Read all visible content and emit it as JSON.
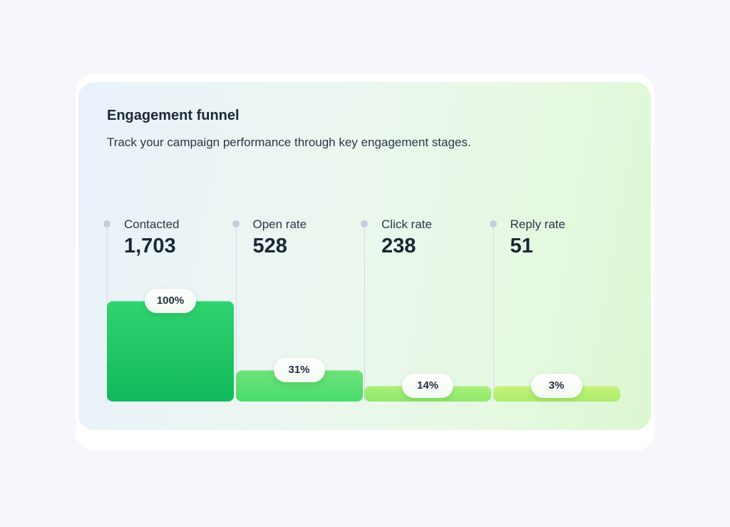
{
  "header": {
    "title": "Engagement funnel",
    "subtitle": "Track your campaign performance through key engagement stages."
  },
  "chart_data": {
    "type": "bar",
    "categories": [
      "Contacted",
      "Open rate",
      "Click rate",
      "Reply rate"
    ],
    "values": [
      1703,
      528,
      238,
      51
    ],
    "value_labels": [
      "1,703",
      "528",
      "238",
      "51"
    ],
    "percent_labels": [
      "100%",
      "31%",
      "14%",
      "3%"
    ],
    "percents": [
      100,
      31,
      14,
      3
    ],
    "title": "Engagement funnel",
    "subtitle": "Track your campaign performance through key engagement stages.",
    "xlabel": "",
    "ylabel": "",
    "grid": false,
    "colors": [
      [
        "#2fd470",
        "#12b95a"
      ],
      [
        "#6fe27a",
        "#47dd6b"
      ],
      [
        "#abf07c",
        "#8fe86c"
      ],
      [
        "#c5f37e",
        "#acec6c"
      ]
    ]
  }
}
